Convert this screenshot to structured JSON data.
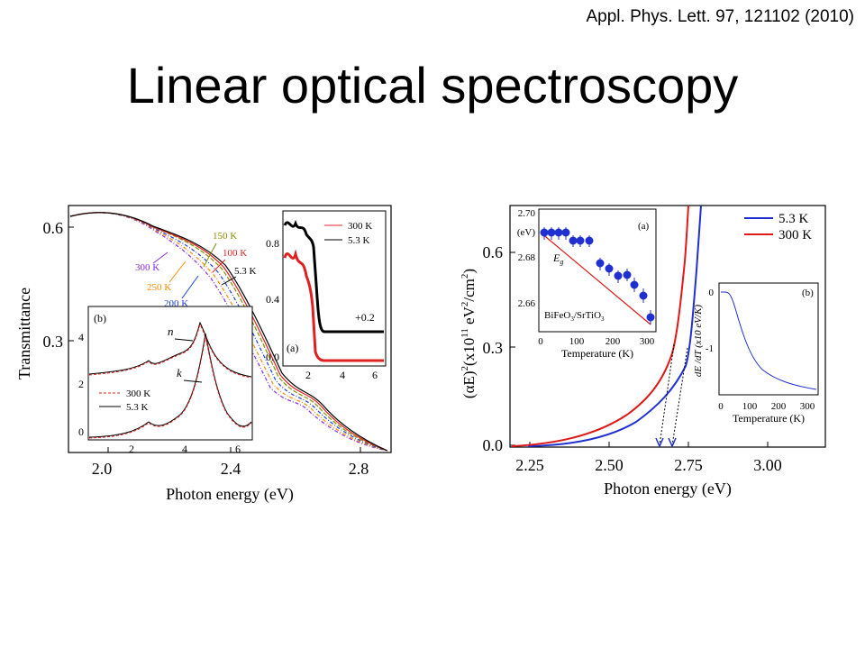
{
  "citation": "Appl. Phys. Lett. 97, 121102 (2010)",
  "slide_title": "Linear optical spectroscopy",
  "left_figure": {
    "ylabel": "Transmittance",
    "xlabel": "Photon energy (eV)",
    "y_ticks": [
      "0.6",
      "0.3"
    ],
    "x_ticks": [
      "2.0",
      "2.4",
      "2.8"
    ],
    "temperature_labels": [
      "150 K",
      "100 K",
      "5.3 K",
      "300 K",
      "250 K",
      "200 K"
    ],
    "temperature_colors": [
      "#8a8a00",
      "#e02020",
      "#000000",
      "#8a2be2",
      "#ff8c00",
      "#1f3fe0"
    ],
    "inset_b": {
      "panel": "(b)",
      "y_ticks": [
        "4",
        "2",
        "0"
      ],
      "x_ticks": [
        "2",
        "4",
        "6"
      ],
      "label_n": "n",
      "label_k": "k",
      "legend": [
        "300 K",
        "5.3 K"
      ]
    },
    "inset_a": {
      "panel": "(a)",
      "y_ticks": [
        "0.8",
        "0.4",
        "0.0"
      ],
      "x_ticks": [
        "2",
        "4",
        "6"
      ],
      "offset_label": "+0.2",
      "legend": [
        "300 K",
        "5.3 K"
      ]
    }
  },
  "right_figure": {
    "ylabel_parts": [
      "(αE)",
      "2",
      "(x10",
      "11",
      " eV",
      "2",
      "/cm",
      "2",
      ")"
    ],
    "xlabel": "Photon energy (eV)",
    "y_ticks": [
      "0.6",
      "0.3",
      "0.0"
    ],
    "x_ticks": [
      "2.25",
      "2.50",
      "2.75",
      "3.00"
    ],
    "legend": [
      {
        "label": "5.3 K",
        "color": "#1f2fd0"
      },
      {
        "label": "300 K",
        "color": "#e01818"
      }
    ],
    "inset_a": {
      "panel": "(a)",
      "unit": "(eV)",
      "y_ticks": [
        "2.70",
        "2.68",
        "2.66"
      ],
      "x_ticks": [
        "0",
        "100",
        "200",
        "300"
      ],
      "xlabel": "Temperature (K)",
      "eg_label": "E",
      "eg_sub": "g",
      "material": "BiFeO",
      "material_sub": "3",
      "substrate": "/SrTiO",
      "substrate_sub": "3"
    },
    "inset_b": {
      "panel": "(b)",
      "y_ticks": [
        "0",
        "-1"
      ],
      "x_ticks": [
        "0",
        "100",
        "200",
        "300"
      ],
      "xlabel": "Temperature (K)",
      "ylabel": "dE /dT (x10  eV/K)"
    }
  },
  "chart_data": [
    {
      "type": "line",
      "title": "",
      "xlabel": "Photon energy (eV)",
      "ylabel": "Transmittance",
      "xlim": [
        1.9,
        2.9
      ],
      "ylim": [
        0.0,
        0.65
      ],
      "series": [
        {
          "name": "5.3 K",
          "x": [
            1.9,
            2.0,
            2.1,
            2.2,
            2.3,
            2.4,
            2.5,
            2.6,
            2.7,
            2.8,
            2.9
          ],
          "y": [
            0.61,
            0.63,
            0.62,
            0.58,
            0.54,
            0.44,
            0.3,
            0.18,
            0.1,
            0.04,
            0.0
          ]
        },
        {
          "name": "100 K",
          "x": [
            1.9,
            2.0,
            2.1,
            2.2,
            2.3,
            2.4,
            2.5,
            2.6,
            2.7,
            2.8,
            2.9
          ],
          "y": [
            0.61,
            0.63,
            0.62,
            0.58,
            0.53,
            0.43,
            0.29,
            0.17,
            0.09,
            0.03,
            0.0
          ]
        },
        {
          "name": "150 K",
          "x": [
            1.9,
            2.0,
            2.1,
            2.2,
            2.3,
            2.4,
            2.5,
            2.6,
            2.7,
            2.8,
            2.9
          ],
          "y": [
            0.61,
            0.63,
            0.62,
            0.58,
            0.52,
            0.42,
            0.28,
            0.17,
            0.09,
            0.03,
            0.0
          ]
        },
        {
          "name": "200 K",
          "x": [
            1.9,
            2.0,
            2.1,
            2.2,
            2.3,
            2.4,
            2.5,
            2.6,
            2.7,
            2.8,
            2.9
          ],
          "y": [
            0.61,
            0.63,
            0.62,
            0.57,
            0.5,
            0.4,
            0.27,
            0.16,
            0.08,
            0.03,
            0.0
          ]
        },
        {
          "name": "250 K",
          "x": [
            1.9,
            2.0,
            2.1,
            2.2,
            2.3,
            2.4,
            2.5,
            2.6,
            2.7,
            2.8,
            2.9
          ],
          "y": [
            0.61,
            0.63,
            0.61,
            0.56,
            0.48,
            0.38,
            0.26,
            0.15,
            0.08,
            0.02,
            0.0
          ]
        },
        {
          "name": "300 K",
          "x": [
            1.9,
            2.0,
            2.1,
            2.2,
            2.3,
            2.4,
            2.5,
            2.6,
            2.7,
            2.8,
            2.9
          ],
          "y": [
            0.61,
            0.63,
            0.61,
            0.55,
            0.46,
            0.36,
            0.25,
            0.14,
            0.07,
            0.02,
            0.0
          ]
        }
      ]
    },
    {
      "type": "line",
      "title": "",
      "xlabel": "Photon energy (eV)",
      "ylabel": "(αE)2(x10 11 eV2/cm2)",
      "xlim": [
        2.2,
        3.18
      ],
      "ylim": [
        0.0,
        0.75
      ],
      "series": [
        {
          "name": "5.3 K",
          "x": [
            2.25,
            2.4,
            2.5,
            2.6,
            2.7,
            2.74,
            2.76,
            2.78
          ],
          "y": [
            0.0,
            0.02,
            0.06,
            0.14,
            0.24,
            0.34,
            0.55,
            0.75
          ]
        },
        {
          "name": "300 K",
          "x": [
            2.25,
            2.4,
            2.5,
            2.6,
            2.66,
            2.7,
            2.73,
            2.75
          ],
          "y": [
            0.0,
            0.03,
            0.09,
            0.19,
            0.27,
            0.38,
            0.6,
            0.75
          ]
        }
      ]
    }
  ]
}
